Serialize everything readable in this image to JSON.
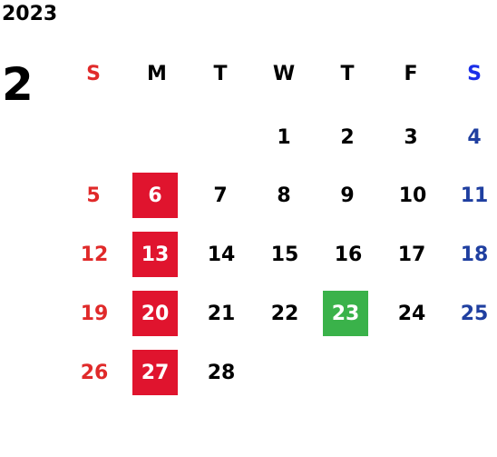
{
  "calendar": {
    "year": "2023",
    "month": "2",
    "weekdays": [
      "S",
      "M",
      "T",
      "W",
      "T",
      "F",
      "S"
    ],
    "weeks": [
      [
        "",
        "",
        "",
        "1",
        "2",
        "3",
        "4"
      ],
      [
        "5",
        "6",
        "7",
        "8",
        "9",
        "10",
        "11"
      ],
      [
        "12",
        "13",
        "14",
        "15",
        "16",
        "17",
        "18"
      ],
      [
        "19",
        "20",
        "21",
        "22",
        "23",
        "24",
        "25"
      ],
      [
        "26",
        "27",
        "28",
        "",
        "",
        "",
        ""
      ]
    ],
    "highlighted_red": [
      "6",
      "13",
      "20",
      "27"
    ],
    "highlighted_green": [
      "23"
    ],
    "colors": {
      "sunday": "#e02a2a",
      "saturday": "#1f3fa0",
      "highlight_red": "#e0142e",
      "highlight_green": "#3ab24a"
    }
  }
}
